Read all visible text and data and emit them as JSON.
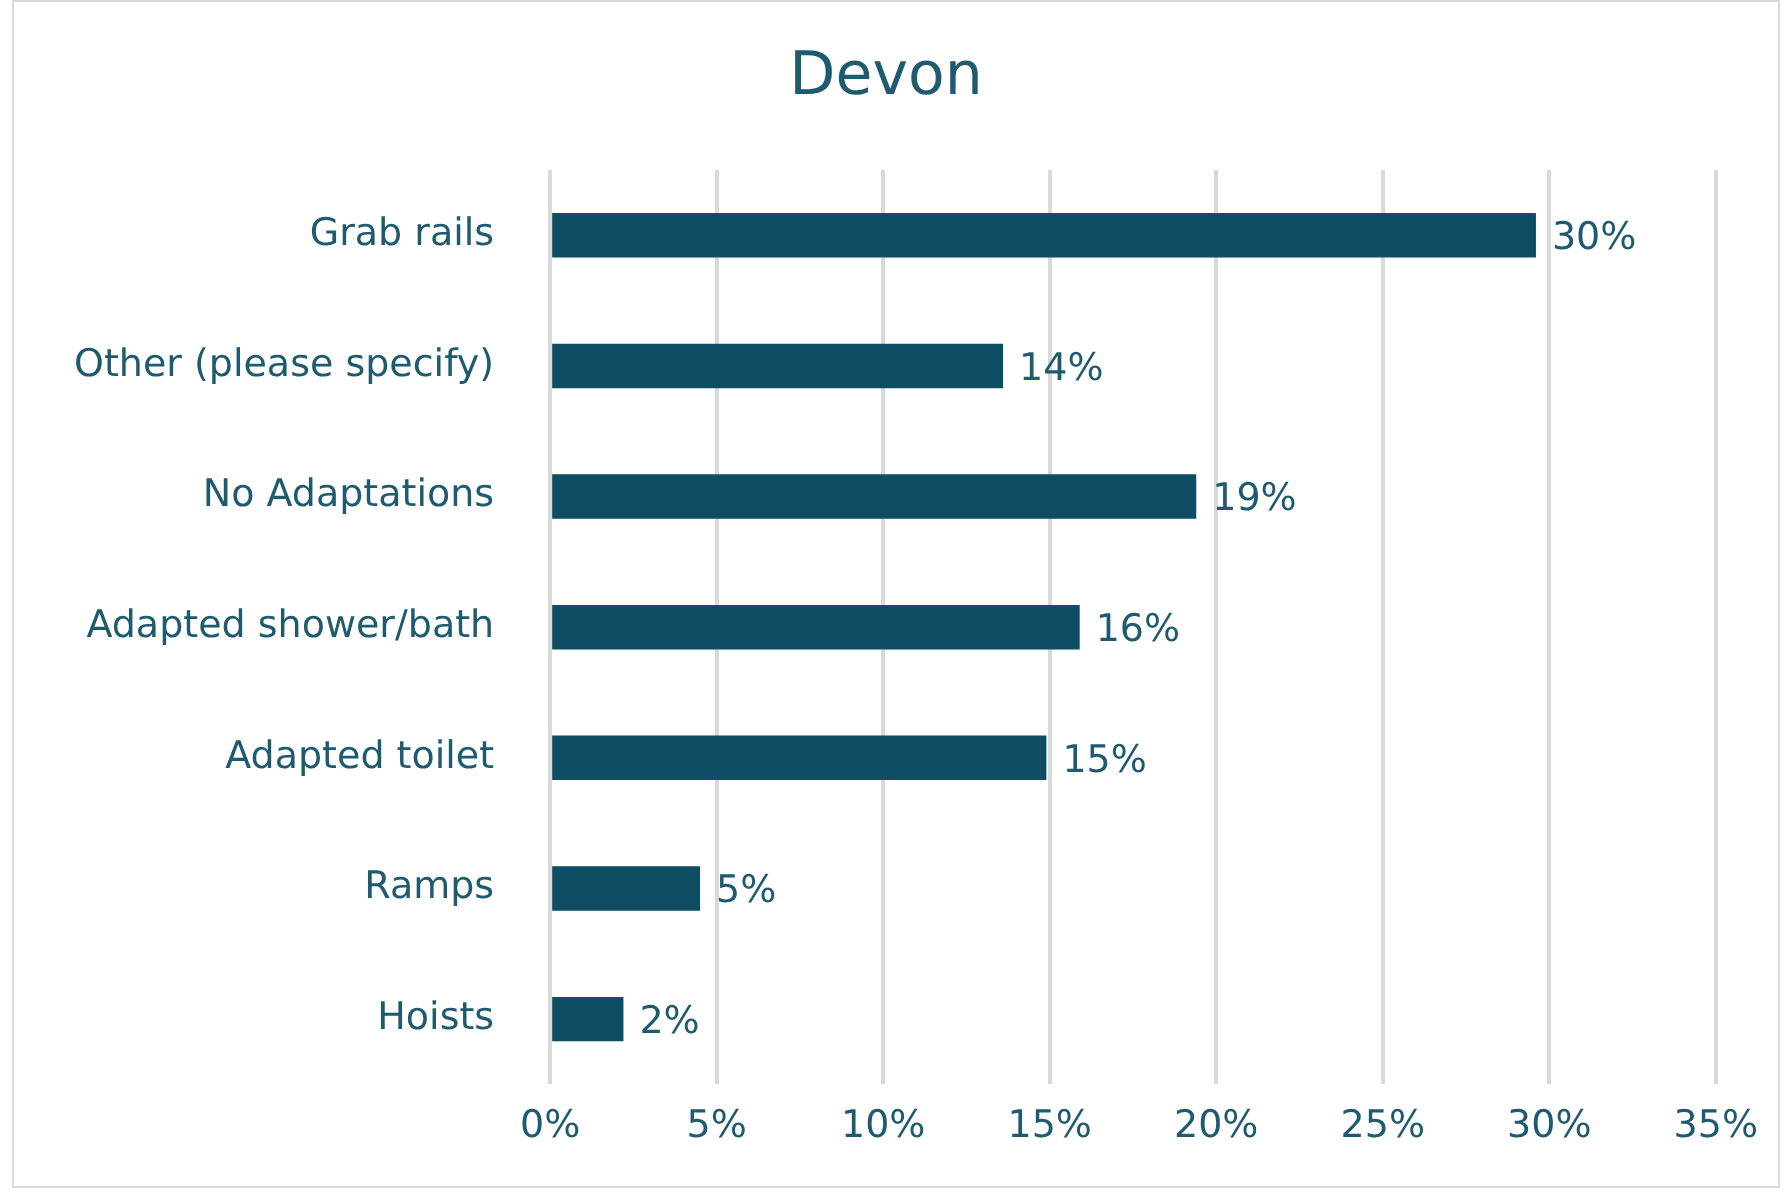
{
  "chart_data": {
    "type": "bar",
    "orientation": "horizontal",
    "title": "Devon",
    "categories": [
      "Grab rails",
      "Other (please specify)",
      "No Adaptations",
      "Adapted shower/bath",
      "Adapted toilet",
      "Ramps",
      "Hoists"
    ],
    "values": [
      29.6,
      13.6,
      19.4,
      15.9,
      14.9,
      4.5,
      2.2
    ],
    "value_labels": [
      "30%",
      "14%",
      "19%",
      "16%",
      "15%",
      "5%",
      "2%"
    ],
    "color": "#0e4d64",
    "xlim": [
      0,
      35
    ],
    "xticks": [
      {
        "value": 0,
        "label": "0%"
      },
      {
        "value": 5,
        "label": "5%"
      },
      {
        "value": 10,
        "label": "10%"
      },
      {
        "value": 15,
        "label": "15%"
      },
      {
        "value": 20,
        "label": "20%"
      },
      {
        "value": 25,
        "label": "25%"
      },
      {
        "value": 30,
        "label": "30%"
      },
      {
        "value": 35,
        "label": "35%"
      }
    ],
    "grid": "x",
    "legend": false
  }
}
